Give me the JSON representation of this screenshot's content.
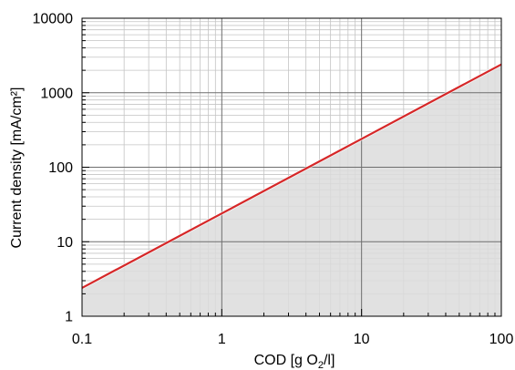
{
  "chart_data": {
    "type": "area",
    "xlabel": "COD [g O₂/l]",
    "xlabel_parts": {
      "before": "COD [g O",
      "sub": "2",
      "after": "/l]"
    },
    "ylabel": "Current density [mA/cm²]",
    "x_scale": "log",
    "y_scale": "log",
    "xlim": [
      0.1,
      100
    ],
    "ylim": [
      1,
      10000
    ],
    "x_ticks": [
      {
        "value": 0.1,
        "label": "0.1"
      },
      {
        "value": 1,
        "label": "1"
      },
      {
        "value": 10,
        "label": "10"
      },
      {
        "value": 100,
        "label": "100"
      }
    ],
    "y_ticks": [
      {
        "value": 1,
        "label": "1"
      },
      {
        "value": 10,
        "label": "10"
      },
      {
        "value": 100,
        "label": "100"
      },
      {
        "value": 1000,
        "label": "1000"
      },
      {
        "value": 10000,
        "label": "10000"
      }
    ],
    "grid": true,
    "series": [
      {
        "x": [
          0.1,
          1,
          10,
          100
        ],
        "y": [
          2.4,
          24,
          240,
          2400
        ],
        "line_color": "#d62728",
        "fill_color": "#dcdcdc",
        "fill": "below"
      }
    ]
  }
}
